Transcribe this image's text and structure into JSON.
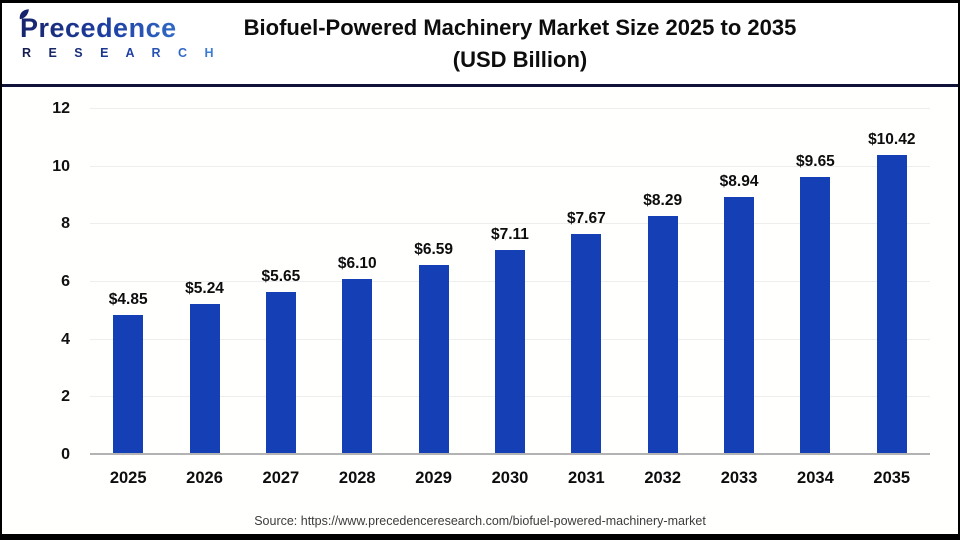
{
  "logo": {
    "name": "Precedence",
    "sub": "R E S E A R C H"
  },
  "header": {
    "title_line1": "Biofuel-Powered Machinery Market Size 2025 to 2035",
    "title_line2": "(USD Billion)"
  },
  "chart_data": {
    "type": "bar",
    "title": "Biofuel-Powered Machinery Market Size 2025 to 2035 (USD Billion)",
    "categories": [
      "2025",
      "2026",
      "2027",
      "2028",
      "2029",
      "2030",
      "2031",
      "2032",
      "2033",
      "2034",
      "2035"
    ],
    "values": [
      4.85,
      5.24,
      5.65,
      6.1,
      6.59,
      7.11,
      7.67,
      8.29,
      8.94,
      9.65,
      10.42
    ],
    "value_labels": [
      "$4.85",
      "$5.24",
      "$5.65",
      "$6.10",
      "$6.59",
      "$7.11",
      "$7.67",
      "$8.29",
      "$8.94",
      "$9.65",
      "$10.42"
    ],
    "xlabel": "",
    "ylabel": "",
    "ylim": [
      0,
      12
    ],
    "yticks": [
      0,
      2,
      4,
      6,
      8,
      10,
      12
    ],
    "grid": true,
    "legend": false,
    "bar_color": "#1540b5",
    "gridline_color": "#eeeeee",
    "baseline_color": "#b3b3b3"
  },
  "footer": {
    "source": "Source: https://www.precedenceresearch.com/biofuel-powered-machinery-market"
  },
  "colors": {
    "accent_blue": "#1540b5",
    "divider_navy": "#10123a",
    "logo_dark": "#17246b",
    "logo_light": "#3f85dc",
    "frame_border": "#000000"
  }
}
